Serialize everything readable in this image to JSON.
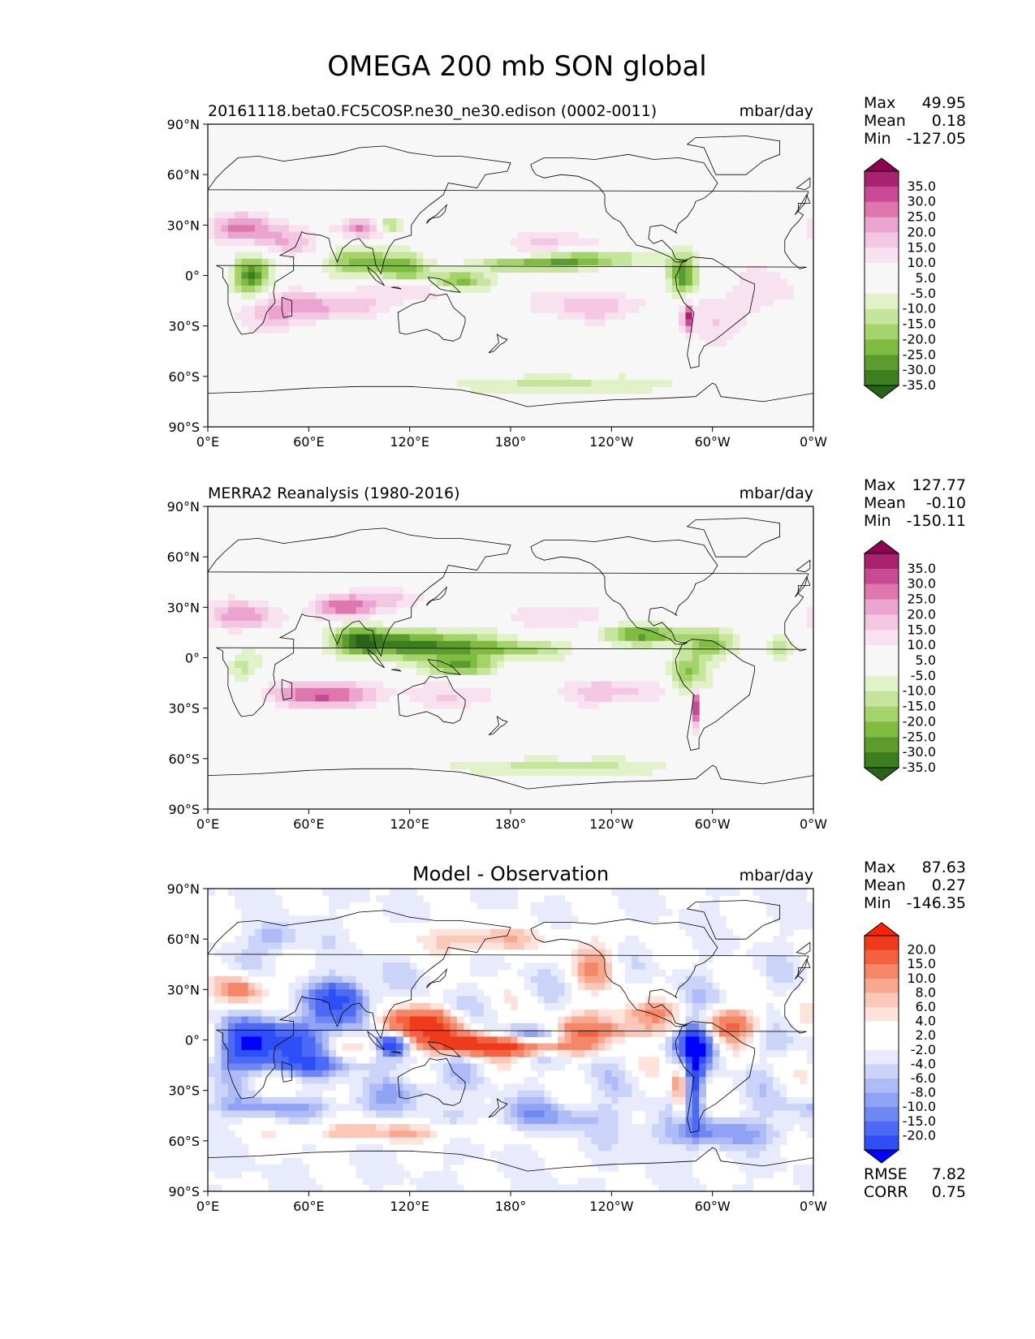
{
  "figure": {
    "title": "OMEGA 200 mb SON global"
  },
  "colors": {
    "piyg": [
      "#276419",
      "#3b7e1e",
      "#5c9b2e",
      "#7fbc41",
      "#a4d26b",
      "#c5e59c",
      "#e2f2c8",
      "#f7f7f7",
      "#f7f7f7",
      "#f9e2ef",
      "#f3c6e1",
      "#eba3cf",
      "#de77ae",
      "#c94a94",
      "#a7236d",
      "#8e0152"
    ],
    "bwr": [
      "#0000ff",
      "#2e4ef8",
      "#4d6af5",
      "#6f87f3",
      "#90a2f4",
      "#aebbf6",
      "#cbd4f8",
      "#e7ebfb",
      "#ffffff",
      "#ffffff",
      "#fde3db",
      "#fbc7b9",
      "#f8a891",
      "#f58768",
      "#f26240",
      "#ef3a1b",
      "#ff2200"
    ],
    "ocean": "#f7f7f7",
    "coast": "#000000"
  },
  "chart_data": [
    {
      "type": "heatmap",
      "title_left": "20161118.beta0.FC5COSP.ne30_ne30.edison (0002-0011)",
      "title_center": "",
      "units": "mbar/day",
      "xticks": [
        "0°E",
        "60°E",
        "120°E",
        "180°",
        "120°W",
        "60°W",
        "0°W"
      ],
      "yticks": [
        "90°N",
        "60°N",
        "30°N",
        "0°",
        "30°S",
        "60°S",
        "90°S"
      ],
      "xlim": [
        0,
        360
      ],
      "ylim": [
        -90,
        90
      ],
      "stats": [
        {
          "label": "Max",
          "value": "49.95"
        },
        {
          "label": "Mean",
          "value": "0.18"
        },
        {
          "label": "Min",
          "value": "-127.05"
        }
      ],
      "colormap": "piyg",
      "colorbar_levels": [
        "35.0",
        "30.0",
        "25.0",
        "20.0",
        "15.0",
        "10.0",
        "5.0",
        "-5.0",
        "-10.0",
        "-15.0",
        "-20.0",
        "-25.0",
        "-30.0",
        "-35.0"
      ],
      "extra_stats": []
    },
    {
      "type": "heatmap",
      "title_left": "MERRA2 Reanalysis (1980-2016)",
      "title_center": "",
      "units": "mbar/day",
      "xticks": [
        "0°E",
        "60°E",
        "120°E",
        "180°",
        "120°W",
        "60°W",
        "0°W"
      ],
      "yticks": [
        "90°N",
        "60°N",
        "30°N",
        "0°",
        "30°S",
        "60°S",
        "90°S"
      ],
      "xlim": [
        0,
        360
      ],
      "ylim": [
        -90,
        90
      ],
      "stats": [
        {
          "label": "Max",
          "value": "127.77"
        },
        {
          "label": "Mean",
          "value": "-0.10"
        },
        {
          "label": "Min",
          "value": "-150.11"
        }
      ],
      "colormap": "piyg",
      "colorbar_levels": [
        "35.0",
        "30.0",
        "25.0",
        "20.0",
        "15.0",
        "10.0",
        "5.0",
        "-5.0",
        "-10.0",
        "-15.0",
        "-20.0",
        "-25.0",
        "-30.0",
        "-35.0"
      ],
      "extra_stats": []
    },
    {
      "type": "heatmap",
      "title_left": "",
      "title_center": "Model - Observation",
      "units": "mbar/day",
      "xticks": [
        "0°E",
        "60°E",
        "120°E",
        "180°",
        "120°W",
        "60°W",
        "0°W"
      ],
      "yticks": [
        "90°N",
        "60°N",
        "30°N",
        "0°",
        "30°S",
        "60°S",
        "90°S"
      ],
      "xlim": [
        0,
        360
      ],
      "ylim": [
        -90,
        90
      ],
      "stats": [
        {
          "label": "Max",
          "value": "87.63"
        },
        {
          "label": "Mean",
          "value": "0.27"
        },
        {
          "label": "Min",
          "value": "-146.35"
        }
      ],
      "colormap": "bwr",
      "colorbar_levels": [
        "20.0",
        "15.0",
        "10.0",
        "8.0",
        "6.0",
        "4.0",
        "2.0",
        "-2.0",
        "-4.0",
        "-6.0",
        "-8.0",
        "-10.0",
        "-15.0",
        "-20.0"
      ],
      "extra_stats": [
        {
          "label": "RMSE",
          "value": "7.82"
        },
        {
          "label": "CORR",
          "value": "0.75"
        }
      ]
    }
  ]
}
